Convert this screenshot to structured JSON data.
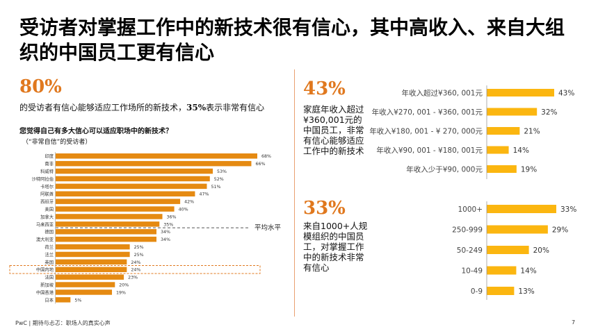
{
  "title": "受访者对掌握工作中的新技术很有信心，其中高收入、来自大组织的中国员工更有信心",
  "left": {
    "big_stat": "80%",
    "stat_text": "的受访者有信心能够适应工作场所的新技术，",
    "stat_text_bold": "35%",
    "stat_text_tail": "表示非常有信心",
    "question": "您觉得自己有多大信心可以适应职场中的新技术？",
    "subq": "（“非常自信”的受访者）",
    "avg_label": "平均水平"
  },
  "right_top": {
    "big_stat": "43%",
    "desc": "家庭年收入超过¥360,001元的中国员工，非常有信心能够适应工作中的新技术"
  },
  "right_bottom": {
    "big_stat": "33%",
    "desc": "来自1000+人规模组织的中国员工，对掌握工作中的新技术非常有信心"
  },
  "footer": "PwC | 期待与忐忑：职场人的真实心声",
  "page_number": "7",
  "colors": {
    "orange": "#e58a12",
    "yellow": "#fbb610",
    "accent": "#e0781e"
  },
  "chart_data": [
    {
      "type": "bar",
      "orientation": "horizontal",
      "categories": [
        "印度",
        "南非",
        "科威特",
        "沙特阿拉伯",
        "卡塔尔",
        "阿联酋",
        "西班牙",
        "美国",
        "加拿大",
        "马来西亚",
        "德国",
        "澳大利亚",
        "荷兰",
        "法兰",
        "英国",
        "中国内地",
        "法国",
        "新加坡",
        "中国香港",
        "日本"
      ],
      "values": [
        68,
        66,
        53,
        52,
        51,
        47,
        42,
        40,
        36,
        35,
        34,
        34,
        25,
        25,
        24,
        24,
        23,
        20,
        19,
        5
      ],
      "value_labels": [
        "68%",
        "66%",
        "53%",
        "52%",
        "51%",
        "47%",
        "42%",
        "40%",
        "36%",
        "35%",
        "34%",
        "34%",
        "25%",
        "25%",
        "24%",
        "24%",
        "23%",
        "20%",
        "19%",
        "5%"
      ],
      "average_line": 35,
      "highlight": "中国内地"
    },
    {
      "type": "bar",
      "orientation": "horizontal",
      "categories": [
        "年收入超过¥360, 001元",
        "年收入¥270, 001 - ¥360, 001元",
        "年收入¥180, 001 - ¥ 270, 000元",
        "年收入¥90, 001 - ¥180, 001元",
        "年收入少于¥90, 000元"
      ],
      "values": [
        43,
        32,
        21,
        14,
        19
      ],
      "value_labels": [
        "43%",
        "32%",
        "21%",
        "14%",
        "19%"
      ]
    },
    {
      "type": "bar",
      "orientation": "horizontal",
      "categories": [
        "1000+",
        "250-999",
        "50-249",
        "10-49",
        "0-9"
      ],
      "values": [
        33,
        29,
        20,
        14,
        13
      ],
      "value_labels": [
        "33%",
        "29%",
        "20%",
        "14%",
        "13%"
      ]
    }
  ]
}
